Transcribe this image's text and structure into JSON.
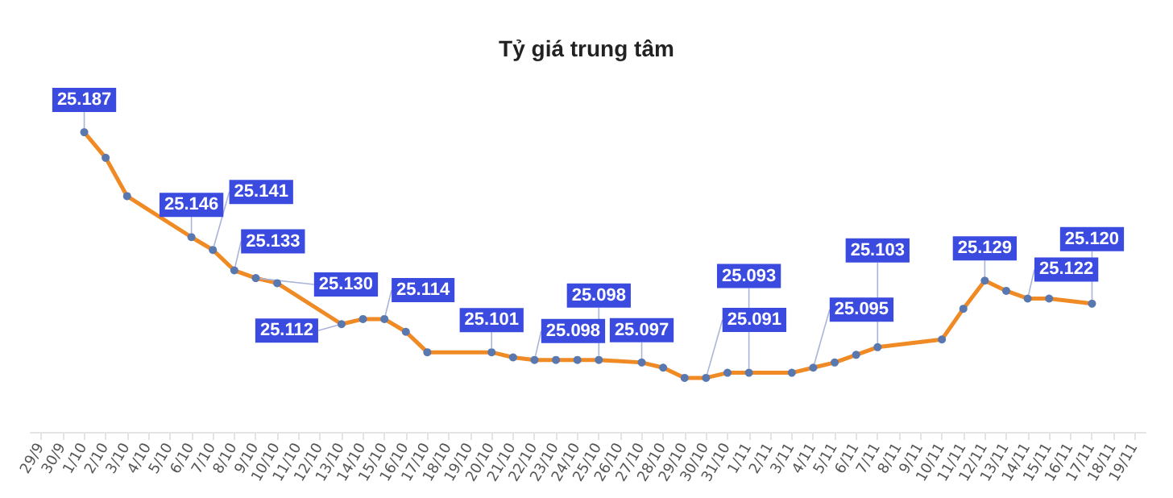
{
  "chart_data": {
    "type": "line",
    "title": "Tỷ giá trung tâm",
    "categories": [
      "29/9",
      "30/9",
      "1/10",
      "2/10",
      "3/10",
      "4/10",
      "5/10",
      "6/10",
      "7/10",
      "8/10",
      "9/10",
      "10/10",
      "11/10",
      "12/10",
      "13/10",
      "14/10",
      "15/10",
      "16/10",
      "17/10",
      "18/10",
      "19/10",
      "20/10",
      "21/10",
      "22/10",
      "23/10",
      "24/10",
      "25/10",
      "26/10",
      "27/10",
      "28/10",
      "29/10",
      "30/10",
      "31/10",
      "1/11",
      "2/11",
      "3/11",
      "4/11",
      "5/11",
      "6/11",
      "7/11",
      "8/11",
      "9/11",
      "10/11",
      "11/11",
      "12/11",
      "13/11",
      "14/11",
      "15/11",
      "16/11",
      "17/11",
      "18/11",
      "19/11"
    ],
    "series": [
      {
        "color": "#f08a24",
        "values": [
          null,
          null,
          25.187,
          25.177,
          25.162,
          null,
          null,
          25.146,
          25.141,
          25.133,
          25.13,
          25.128,
          null,
          null,
          25.112,
          25.114,
          25.114,
          25.109,
          25.101,
          null,
          null,
          25.101,
          25.099,
          25.098,
          25.098,
          25.098,
          25.098,
          null,
          25.097,
          25.095,
          25.091,
          25.091,
          25.093,
          25.093,
          null,
          25.093,
          25.095,
          25.097,
          25.1,
          25.103,
          null,
          null,
          25.106,
          25.118,
          25.129,
          25.125,
          25.122,
          25.122,
          null,
          25.12,
          null,
          null
        ],
        "value_labels": [
          null,
          null,
          "25.187",
          null,
          null,
          null,
          null,
          "25.146",
          "25.141",
          "25.133",
          "25.130",
          null,
          null,
          null,
          "25.112",
          null,
          "25.114",
          null,
          null,
          null,
          null,
          "25.101",
          null,
          "25.098",
          null,
          null,
          "25.098",
          null,
          "25.097",
          null,
          null,
          "25.091",
          null,
          "25.093",
          null,
          null,
          "25.095",
          null,
          null,
          "25.103",
          null,
          null,
          null,
          null,
          "25.129",
          null,
          "25.122",
          null,
          null,
          "25.120",
          null,
          null
        ]
      }
    ],
    "marker": "circle",
    "line_style": "solid",
    "grid": false,
    "tick_labels": "x"
  }
}
